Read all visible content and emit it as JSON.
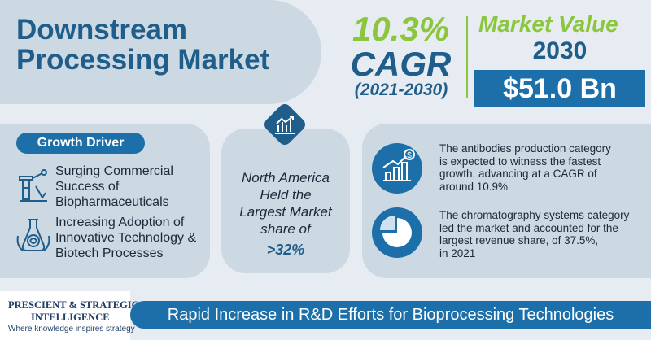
{
  "title": {
    "line1": "Downstream",
    "line2": "Processing Market"
  },
  "cagr": {
    "value": "10.3%",
    "label": "CAGR",
    "years": "(2021-2030)"
  },
  "market_value": {
    "label": "Market Value",
    "year": "2030",
    "value": "$51.0 Bn"
  },
  "growth_driver": {
    "heading": "Growth Driver",
    "items": [
      {
        "icon": "biopharma-lab-icon",
        "lines": [
          "Surging Commercial",
          "Success of",
          "Biopharmaceuticals"
        ]
      },
      {
        "icon": "biotech-flask-icon",
        "lines": [
          "Increasing Adoption of",
          "Innovative Technology &",
          "Biotech Processes"
        ]
      }
    ]
  },
  "region": {
    "icon": "bar-chart-icon",
    "lines": [
      "North America",
      "Held the",
      "Largest Market",
      "share of"
    ],
    "value": ">32%"
  },
  "stats": [
    {
      "icon": "growth-chart-dollar-icon",
      "lines": [
        "The antibodies production category",
        "is expected to witness the fastest",
        "growth, advancing at a CAGR of",
        "around 10.9%"
      ]
    },
    {
      "icon": "pie-chart-icon",
      "lines": [
        "The chromatography systems category",
        "led the market and accounted for the",
        "largest revenue share, of 37.5%,",
        "in 2021"
      ]
    }
  ],
  "logo": {
    "line1": "PRESCIENT & STRATEGIC",
    "line2": "INTELLIGENCE",
    "tagline": "Where knowledge inspires strategy"
  },
  "banner": "Rapid Increase in R&D Efforts for Bioprocessing Technologies",
  "colors": {
    "green": "#8cc63f",
    "navy": "#1f5d8a",
    "blue": "#1c6fa8",
    "panel": "#ccd8e2",
    "background": "#e6ecf1"
  }
}
